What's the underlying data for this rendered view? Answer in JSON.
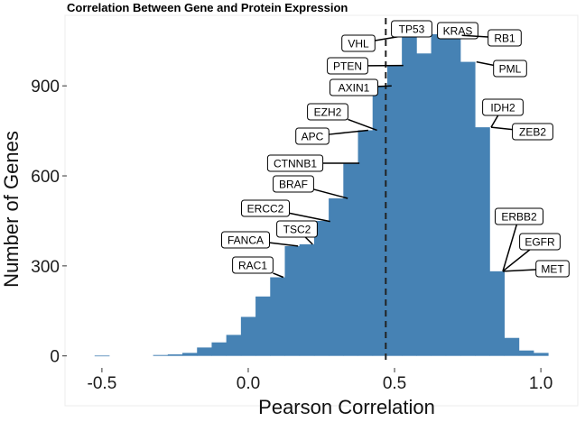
{
  "chart_data": {
    "type": "bar",
    "title": "Correlation Between Gene and Protein Expression",
    "xlabel": "Pearson Correlation",
    "ylabel": "Number of Genes",
    "xlim": [
      -0.62,
      1.12
    ],
    "ylim": [
      -40,
      1120
    ],
    "x_ticks": [
      -0.5,
      0.0,
      0.5,
      1.0
    ],
    "x_tick_labels": [
      "-0.5",
      "0.0",
      "0.5",
      "1.0"
    ],
    "y_ticks": [
      0,
      300,
      600,
      900
    ],
    "y_tick_labels": [
      "0",
      "300",
      "600",
      "900"
    ],
    "bar_color": "#4682b4",
    "bin_width": 0.05,
    "bins": [
      {
        "x": -0.5,
        "count": 1
      },
      {
        "x": -0.3,
        "count": 3
      },
      {
        "x": -0.25,
        "count": 5
      },
      {
        "x": -0.2,
        "count": 10
      },
      {
        "x": -0.15,
        "count": 28
      },
      {
        "x": -0.1,
        "count": 45
      },
      {
        "x": -0.05,
        "count": 70
      },
      {
        "x": 0.0,
        "count": 130
      },
      {
        "x": 0.05,
        "count": 198
      },
      {
        "x": 0.1,
        "count": 262
      },
      {
        "x": 0.15,
        "count": 366
      },
      {
        "x": 0.2,
        "count": 372
      },
      {
        "x": 0.25,
        "count": 450
      },
      {
        "x": 0.3,
        "count": 525
      },
      {
        "x": 0.35,
        "count": 642
      },
      {
        "x": 0.4,
        "count": 752
      },
      {
        "x": 0.45,
        "count": 900
      },
      {
        "x": 0.5,
        "count": 968
      },
      {
        "x": 0.55,
        "count": 1073
      },
      {
        "x": 0.6,
        "count": 1008
      },
      {
        "x": 0.65,
        "count": 1072
      },
      {
        "x": 0.7,
        "count": 1068
      },
      {
        "x": 0.75,
        "count": 980
      },
      {
        "x": 0.8,
        "count": 762
      },
      {
        "x": 0.85,
        "count": 282
      },
      {
        "x": 0.9,
        "count": 60
      },
      {
        "x": 0.95,
        "count": 18
      },
      {
        "x": 1.0,
        "count": 10
      }
    ],
    "reference_line": {
      "x": 0.47,
      "style": "dashed"
    },
    "annotations": [
      {
        "gene": "RAC1",
        "x": 0.12,
        "y": 262
      },
      {
        "gene": "FANCA",
        "x": 0.17,
        "y": 366
      },
      {
        "gene": "TSC2",
        "x": 0.22,
        "y": 372
      },
      {
        "gene": "ERCC2",
        "x": 0.28,
        "y": 448
      },
      {
        "gene": "BRAF",
        "x": 0.34,
        "y": 525
      },
      {
        "gene": "CTNNB1",
        "x": 0.38,
        "y": 642
      },
      {
        "gene": "APC",
        "x": 0.41,
        "y": 752
      },
      {
        "gene": "EZH2",
        "x": 0.44,
        "y": 752
      },
      {
        "gene": "AXIN1",
        "x": 0.49,
        "y": 900
      },
      {
        "gene": "PTEN",
        "x": 0.53,
        "y": 968
      },
      {
        "gene": "VHL",
        "x": 0.57,
        "y": 1073
      },
      {
        "gene": "TP53",
        "x": 0.62,
        "y": 1073
      },
      {
        "gene": "KRAS",
        "x": 0.68,
        "y": 1072
      },
      {
        "gene": "RB1",
        "x": 0.73,
        "y": 1068
      },
      {
        "gene": "PML",
        "x": 0.78,
        "y": 980
      },
      {
        "gene": "IDH2",
        "x": 0.83,
        "y": 762
      },
      {
        "gene": "ZEB2",
        "x": 0.83,
        "y": 762
      },
      {
        "gene": "ERBB2",
        "x": 0.87,
        "y": 282
      },
      {
        "gene": "EGFR",
        "x": 0.87,
        "y": 282
      },
      {
        "gene": "MET",
        "x": 0.87,
        "y": 282
      }
    ]
  }
}
